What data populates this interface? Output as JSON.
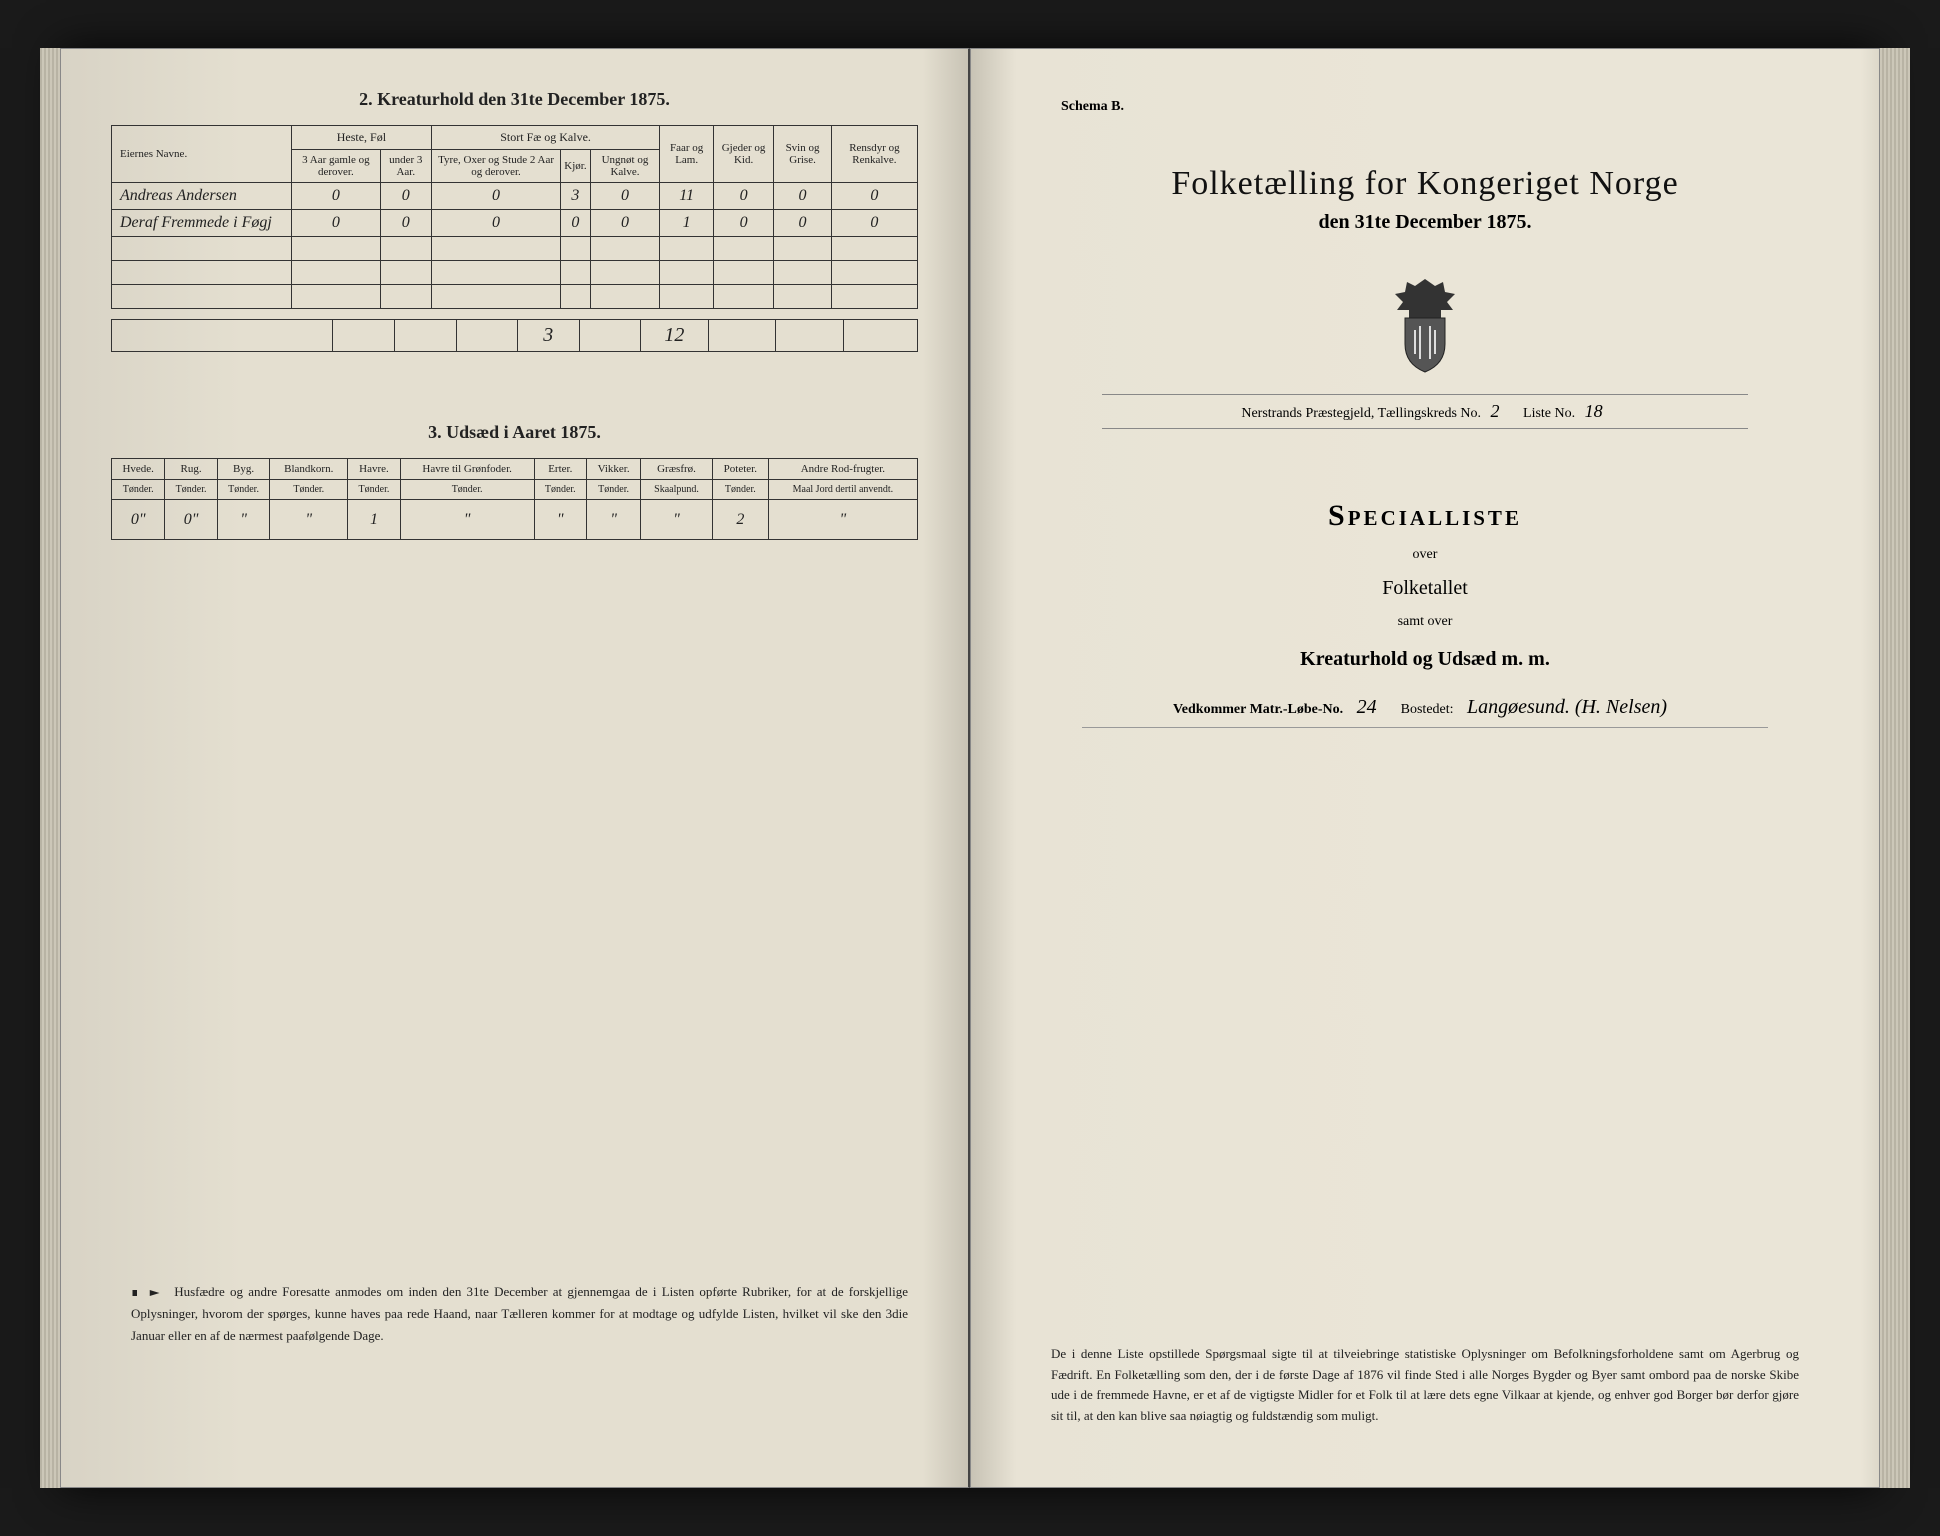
{
  "left": {
    "section2": {
      "title": "2.  Kreaturhold den 31te December 1875.",
      "nameHeader": "Eiernes Navne.",
      "groups": {
        "heste": "Heste, Føl",
        "stort": "Stort Fæ og Kalve."
      },
      "cols": {
        "heste1": "3 Aar gamle og derover.",
        "heste2": "under 3 Aar.",
        "stort1": "Tyre, Oxer og Stude 2 Aar og derover.",
        "stort2": "Kjør.",
        "stort3": "Ungnøt og Kalve.",
        "faar": "Faar og Lam.",
        "gjeder": "Gjeder og Kid.",
        "svin": "Svin og Grise.",
        "ren": "Rensdyr og Renkalve."
      },
      "rows": [
        {
          "name": "Andreas Andersen",
          "v": [
            "0",
            "0",
            "0",
            "3",
            "0",
            "11",
            "0",
            "0",
            "0"
          ]
        },
        {
          "name": "Deraf Fremmede i Føgj",
          "v": [
            "0",
            "0",
            "0",
            "0",
            "0",
            "1",
            "0",
            "0",
            "0"
          ]
        }
      ],
      "totals": [
        "",
        "",
        "",
        "3",
        "",
        "12",
        "",
        "",
        ""
      ]
    },
    "section3": {
      "title": "3.  Udsæd i Aaret 1875.",
      "cols": [
        {
          "h": "Hvede.",
          "u": "Tønder."
        },
        {
          "h": "Rug.",
          "u": "Tønder."
        },
        {
          "h": "Byg.",
          "u": "Tønder."
        },
        {
          "h": "Blandkorn.",
          "u": "Tønder."
        },
        {
          "h": "Havre.",
          "u": "Tønder."
        },
        {
          "h": "Havre til Grønfoder.",
          "u": "Tønder."
        },
        {
          "h": "Erter.",
          "u": "Tønder."
        },
        {
          "h": "Vikker.",
          "u": "Tønder."
        },
        {
          "h": "Græsfrø.",
          "u": "Skaalpund."
        },
        {
          "h": "Poteter.",
          "u": "Tønder."
        },
        {
          "h": "Andre Rod-frugter.",
          "u": "Maal Jord dertil anvendt."
        }
      ],
      "row": [
        "0\"",
        "0\"",
        "\"",
        "\"",
        "1",
        "\"",
        "\"",
        "\"",
        "\"",
        "2",
        "\""
      ]
    },
    "footnote": "Husfædre og andre Foresatte anmodes om inden den 31te December at gjennemgaa de i Listen opførte Rubriker, for at de forskjellige Oplysninger, hvorom der spørges, kunne haves paa rede Haand, naar Tælleren kommer for at modtage og udfylde Listen, hvilket vil ske den 3die Januar eller en af de nærmest paafølgende Dage."
  },
  "right": {
    "schema": "Schema B.",
    "title": "Folketælling for Kongeriget Norge",
    "subtitle": "den 31te December 1875.",
    "parish_label": "Nerstrands Præstegjeld,  Tællingskreds No.",
    "kreds_no": "2",
    "liste_label": "Liste No.",
    "liste_no": "18",
    "special": {
      "h": "Specialliste",
      "over": "over",
      "folketallet": "Folketallet",
      "samt": "samt over",
      "kreatur": "Kreaturhold og Udsæd m. m."
    },
    "matr_label": "Vedkommer Matr.-Løbe-No.",
    "matr_no": "24",
    "bostedet_label": "Bostedet:",
    "bostedet": "Langøesund.  (H. Nelsen)",
    "footer": "De i denne Liste opstillede Spørgsmaal sigte til at tilveiebringe statistiske Oplysninger om Befolkningsforholdene samt om Agerbrug og Fædrift.  En Folketælling som den, der i de første Dage af 1876 vil finde Sted i alle Norges Bygder og Byer samt ombord paa de norske Skibe ude i de fremmede Havne, er et af de vigtigste Midler for et Folk til at lære dets egne Vilkaar at kjende, og enhver god Borger bør derfor gjøre sit til, at den kan blive saa nøiagtig og fuldstændig som muligt."
  },
  "colors": {
    "ink": "#1a1a1a",
    "paper": "#e8e3d5",
    "rule": "#333333"
  }
}
